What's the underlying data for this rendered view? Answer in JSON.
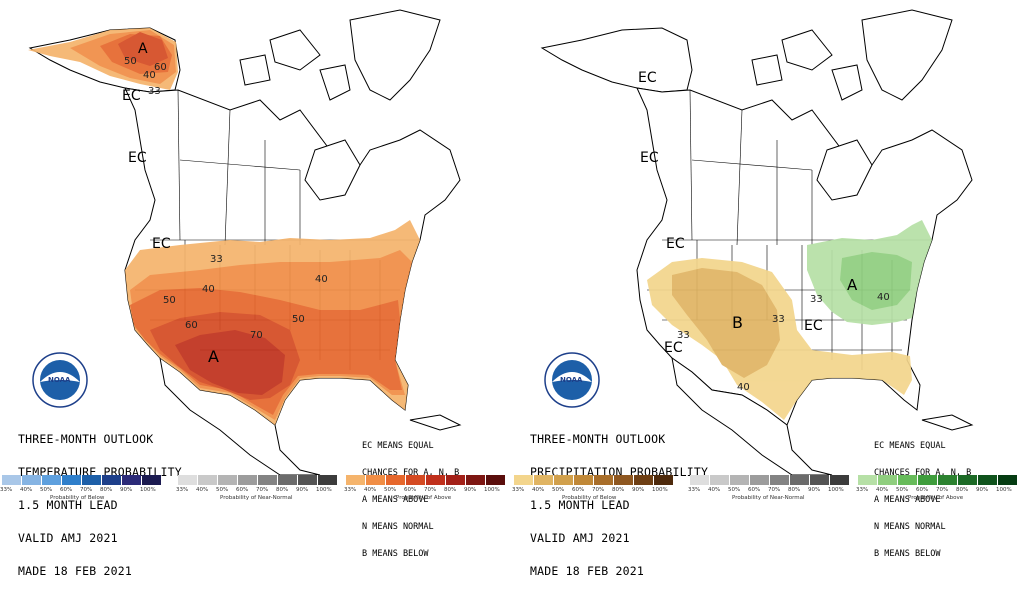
{
  "temperature": {
    "title_lines": [
      "THREE-MONTH OUTLOOK",
      "TEMPERATURE PROBABILITY",
      "1.5 MONTH LEAD",
      "VALID AMJ 2021",
      "MADE 18 FEB 2021"
    ],
    "ec_note_lines": [
      "EC MEANS EQUAL",
      "CHANCES FOR A, N, B",
      "A MEANS ABOVE",
      "N MEANS NORMAL",
      "B MEANS BELOW"
    ],
    "map_labels": {
      "a1": "A",
      "a2": "A",
      "ec1": "EC",
      "ec2": "EC",
      "ec3": "EC",
      "c33a": "33",
      "c33b": "33",
      "c40a": "40",
      "c40b": "40",
      "c40c": "40",
      "c50a": "50",
      "c50b": "50",
      "c50c": "50",
      "c60a": "60",
      "c60b": "60",
      "c70": "70"
    },
    "legend": {
      "below": {
        "ticks": [
          "33%",
          "40%",
          "50%",
          "60%",
          "70%",
          "80%",
          "90%",
          "100%"
        ],
        "caption": "Probability of Below",
        "colors": [
          "#a9c7e8",
          "#86b4e3",
          "#5ea0de",
          "#2f7fcb",
          "#1d5fa8",
          "#1d3f8a",
          "#2b2a78",
          "#1b1a50"
        ]
      },
      "normal": {
        "ticks": [
          "33%",
          "40%",
          "50%",
          "60%",
          "70%",
          "80%",
          "90%",
          "100%"
        ],
        "caption": "Probability of Near-Normal",
        "colors": [
          "#dedede",
          "#c9c9c9",
          "#b4b4b4",
          "#9c9c9c",
          "#838383",
          "#6b6b6b",
          "#545454",
          "#3c3c3c"
        ]
      },
      "above": {
        "ticks": [
          "33%",
          "40%",
          "50%",
          "60%",
          "70%",
          "80%",
          "90%",
          "100%"
        ],
        "caption": "Probability of Above",
        "colors": [
          "#f5b46c",
          "#f08d45",
          "#e6672c",
          "#d44a22",
          "#c0301c",
          "#a32018",
          "#7d1612",
          "#5a0e0c"
        ]
      }
    }
  },
  "precipitation": {
    "title_lines": [
      "THREE-MONTH OUTLOOK",
      "PRECIPITATION PROBABILITY",
      "1.5 MONTH LEAD",
      "VALID AMJ 2021",
      "MADE 18 FEB 2021"
    ],
    "ec_note_lines": [
      "EC MEANS EQUAL",
      "CHANCES FOR A, N, B",
      "A MEANS ABOVE",
      "N MEANS NORMAL",
      "B MEANS BELOW"
    ],
    "map_labels": {
      "ec1": "EC",
      "ec2": "EC",
      "ec3": "EC",
      "ec4": "EC",
      "ec5": "EC",
      "b": "B",
      "a": "A",
      "c33a": "33",
      "c33b": "33",
      "c33c": "33",
      "c40a": "40",
      "c40b": "40"
    },
    "legend": {
      "below": {
        "ticks": [
          "33%",
          "40%",
          "50%",
          "60%",
          "70%",
          "80%",
          "90%",
          "100%"
        ],
        "caption": "Probability of Below",
        "colors": [
          "#f3d58c",
          "#e0b462",
          "#d1a04c",
          "#c08838",
          "#a86e2a",
          "#8e5720",
          "#6e3f14",
          "#4e2a0c"
        ]
      },
      "normal": {
        "ticks": [
          "33%",
          "40%",
          "50%",
          "60%",
          "70%",
          "80%",
          "90%",
          "100%"
        ],
        "caption": "Probability of Near-Normal",
        "colors": [
          "#dedede",
          "#c9c9c9",
          "#b4b4b4",
          "#9c9c9c",
          "#838383",
          "#6b6b6b",
          "#545454",
          "#3c3c3c"
        ]
      },
      "above": {
        "ticks": [
          "33%",
          "40%",
          "50%",
          "60%",
          "70%",
          "80%",
          "90%",
          "100%"
        ],
        "caption": "Probability of Above",
        "colors": [
          "#b6e0a6",
          "#8fce7e",
          "#67bb5a",
          "#3f9d3c",
          "#2c8230",
          "#1c6a26",
          "#0f531c",
          "#053c12"
        ]
      }
    }
  }
}
